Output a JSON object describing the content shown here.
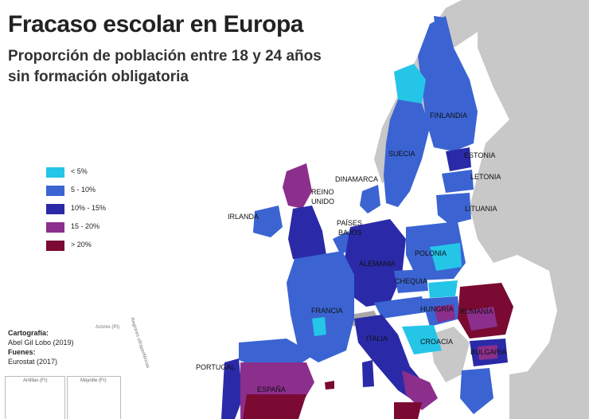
{
  "title": "Fracaso escolar en Europa",
  "subtitle": "Proporción de población entre 18 y 24 años sin formación obligatoria",
  "legend": [
    {
      "label": "< 5%",
      "color": "#25c5e8"
    },
    {
      "label": "5 - 10%",
      "color": "#3b64d2"
    },
    {
      "label": "10% - 15%",
      "color": "#2a2aa8"
    },
    {
      "label": "15 - 20%",
      "color": "#8c2e8c"
    },
    {
      "label": "> 20%",
      "color": "#7a0a32"
    }
  ],
  "credits": {
    "cartography_heading": "Cartografía:",
    "cartography_author": "Abel Gil Lobo (2019)",
    "sources_heading": "Fuenes:",
    "sources_value": "Eurostat (2017)"
  },
  "labels": {
    "finlandia": "FINLANDIA",
    "suecia": "SUECIA",
    "estonia": "ESTONIA",
    "letonia": "LETONIA",
    "lituania": "LITUANIA",
    "dinamarca": "DINAMARCA",
    "reino_unido_1": "REINO",
    "reino_unido_2": "UNIDO",
    "irlanda": "IRLANDA",
    "paises_bajos_1": "PAÍSES",
    "paises_bajos_2": "BAJOS",
    "polonia": "POLONIA",
    "alemania": "ALEMANIA",
    "chequia": "CHEQUIA",
    "francia": "FRANCIA",
    "hungria": "HUNGRÍA",
    "rumania": "RUMANÍA",
    "croacia": "CROACIA",
    "italia": "ITALIA",
    "bulgaria": "BULGARIA",
    "portugal": "PORTUGAL",
    "espana": "ESPAÑA"
  },
  "insets": {
    "azores": "Azores (Pt)",
    "regiones": "Regiones ultraperiféricas",
    "antillas": "Antillas (Fr)",
    "mayotte": "Mayotte (Fr)"
  },
  "colors": {
    "non_eu_land": "#c8c8c8",
    "no_data": "#a8a8a8",
    "sea": "#ffffff",
    "border": "#ffffff"
  }
}
